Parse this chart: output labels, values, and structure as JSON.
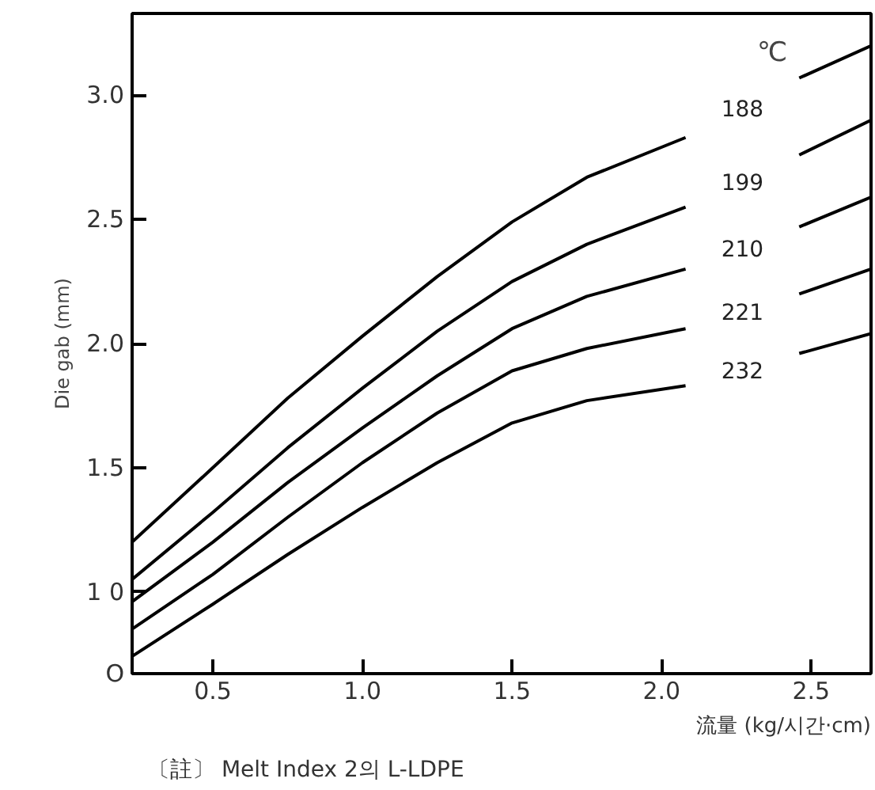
{
  "chart_data": {
    "type": "line",
    "xlabel": "流量 (kg/시간·cm)",
    "ylabel": "Die gab (mm)",
    "annotations": [
      "℃",
      "〔註〕 Melt Index 2의 L-LDPE"
    ],
    "x": [
      0.23,
      0.5,
      0.75,
      1.0,
      1.25,
      1.5,
      1.75,
      2.08,
      2.27,
      2.46,
      2.7
    ],
    "series": [
      {
        "name": "188",
        "color": "#000000",
        "values": [
          1.2,
          1.5,
          1.78,
          2.03,
          2.27,
          2.49,
          2.67,
          2.83,
          null,
          3.07,
          3.2
        ]
      },
      {
        "name": "199",
        "color": "#000000",
        "values": [
          1.05,
          1.32,
          1.58,
          1.82,
          2.05,
          2.25,
          2.4,
          2.55,
          null,
          2.76,
          2.9
        ]
      },
      {
        "name": "210",
        "color": "#000000",
        "values": [
          0.96,
          1.2,
          1.44,
          1.66,
          1.87,
          2.06,
          2.19,
          2.3,
          null,
          2.47,
          2.59
        ]
      },
      {
        "name": "221",
        "color": "#000000",
        "values": [
          0.85,
          1.07,
          1.3,
          1.52,
          1.72,
          1.89,
          1.98,
          2.06,
          null,
          2.2,
          2.3
        ]
      },
      {
        "name": "232",
        "color": "#000000",
        "values": [
          0.74,
          0.95,
          1.15,
          1.34,
          1.52,
          1.68,
          1.77,
          1.83,
          null,
          1.96,
          2.04
        ]
      }
    ],
    "xlim": [
      0.23,
      2.7
    ],
    "ylim": [
      0.67,
      3.33
    ],
    "xticks": [
      {
        "value": 0.5,
        "label": "0.5"
      },
      {
        "value": 1.0,
        "label": "1.0"
      },
      {
        "value": 1.5,
        "label": "1.5"
      },
      {
        "value": 2.0,
        "label": "2.0"
      },
      {
        "value": 2.5,
        "label": "2.5"
      }
    ],
    "yticks": [
      {
        "value": 0.67,
        "label": "O"
      },
      {
        "value": 1.0,
        "label": "1 0"
      },
      {
        "value": 1.5,
        "label": "1.5"
      },
      {
        "value": 2.0,
        "label": "2.0"
      },
      {
        "value": 2.5,
        "label": "2.5"
      },
      {
        "value": 3.0,
        "label": "3.0"
      }
    ],
    "grid": false,
    "legend": false,
    "marker": "none",
    "line_style": "solid"
  }
}
